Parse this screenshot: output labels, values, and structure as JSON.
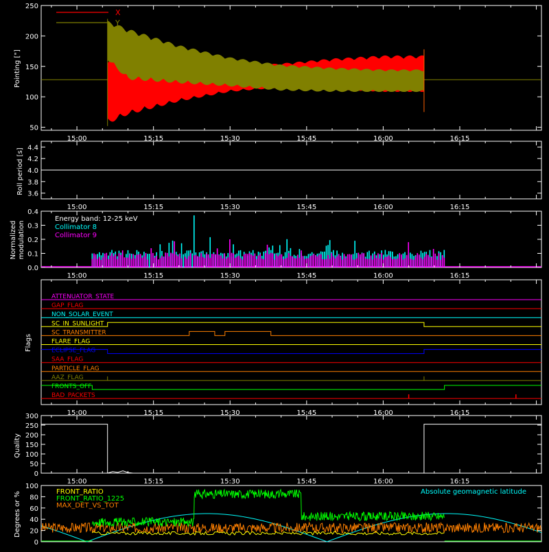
{
  "time_ticks": [
    "15:00",
    "15:15",
    "15:30",
    "15:45",
    "16:00",
    "16:15"
  ],
  "chart_data": [
    {
      "id": "pointing",
      "type": "area",
      "ylabel": "Pointing [\"]",
      "yticks": [
        50,
        100,
        150,
        200,
        250
      ],
      "ylim": [
        45,
        250
      ],
      "legend_placement": "top-left",
      "baseline": 128,
      "series": [
        {
          "name": "X",
          "color": "#ff0000",
          "envelope_upper": [
            [
              "15:06",
              165
            ],
            [
              "15:10",
              160
            ],
            [
              "15:20",
              152
            ],
            [
              "15:30",
              150
            ],
            [
              "15:40",
              155
            ],
            [
              "15:50",
              163
            ],
            [
              "16:00",
              168
            ],
            [
              "16:08",
              168
            ]
          ],
          "envelope_lower": [
            [
              "15:06",
              55
            ],
            [
              "15:10",
              70
            ],
            [
              "15:20",
              92
            ],
            [
              "15:30",
              108
            ],
            [
              "15:40",
              115
            ],
            [
              "15:50",
              112
            ],
            [
              "16:00",
              108
            ],
            [
              "16:08",
              108
            ]
          ]
        },
        {
          "name": "Y",
          "color": "#808000",
          "envelope_upper": [
            [
              "15:06",
              225
            ],
            [
              "15:10",
              212
            ],
            [
              "15:20",
              185
            ],
            [
              "15:30",
              165
            ],
            [
              "15:40",
              153
            ],
            [
              "15:50",
              148
            ],
            [
              "16:00",
              145
            ],
            [
              "16:08",
              145
            ]
          ],
          "envelope_lower": [
            [
              "15:06",
              160
            ],
            [
              "15:10",
              128
            ],
            [
              "15:20",
              122
            ],
            [
              "15:30",
              117
            ],
            [
              "15:40",
              110
            ],
            [
              "15:50",
              108
            ],
            [
              "16:00",
              108
            ],
            [
              "16:08",
              108
            ]
          ]
        }
      ]
    },
    {
      "id": "roll",
      "type": "line",
      "ylabel": "Roll period [s]",
      "yticks": [
        "3.6",
        "3.8",
        "4.0",
        "4.2",
        "4.4"
      ],
      "ylim": [
        3.5,
        4.5
      ],
      "series": [
        {
          "name": "",
          "color": "#ffffff",
          "points": [
            [
              "14:53",
              4.0
            ],
            [
              "16:31",
              4.0
            ]
          ]
        }
      ]
    },
    {
      "id": "modulation",
      "type": "bar",
      "ylabel_lines": [
        "Normalized",
        "modulation"
      ],
      "yticks": [
        "0.0",
        "0.1",
        "0.2",
        "0.3",
        "0.4"
      ],
      "ylim": [
        0,
        0.4
      ],
      "annotation": "Energy band: 12-25 keV",
      "series": [
        {
          "name": "Collimator 8",
          "color": "#00ffff",
          "start": "15:03",
          "end": "16:12",
          "typical": 0.1,
          "peak": [
            "15:23",
            0.37
          ]
        },
        {
          "name": "Collimator 9",
          "color": "#ff00ff",
          "start": "15:03",
          "end": "16:12",
          "typical": 0.08,
          "peak": [
            "15:30",
            0.2
          ]
        }
      ]
    },
    {
      "id": "flags",
      "type": "line",
      "ylabel": "Flags",
      "flags": [
        {
          "name": "ATTENUATOR_STATE",
          "color": "#ff00ff",
          "segments": [
            [
              "14:53",
              "16:31",
              0
            ]
          ]
        },
        {
          "name": "GAP_FLAG",
          "color": "#ff0000",
          "segments": [
            [
              "14:53",
              "16:31",
              0
            ]
          ]
        },
        {
          "name": "NON_SOLAR_EVENT",
          "color": "#00ffff",
          "segments": [
            [
              "14:53",
              "16:31",
              0
            ]
          ]
        },
        {
          "name": "SC_IN_SUNLIGHT",
          "color": "#ffff00",
          "segments": [
            [
              "14:53",
              "15:06",
              0
            ],
            [
              "15:06",
              "16:08",
              1
            ],
            [
              "16:08",
              "16:31",
              0
            ]
          ]
        },
        {
          "name": "SC_TRANSMITTER",
          "color": "#ff8000",
          "segments": [
            [
              "14:53",
              "15:22",
              0
            ],
            [
              "15:22",
              "15:27",
              1
            ],
            [
              "15:27",
              "15:29",
              0
            ],
            [
              "15:29",
              "15:38",
              1
            ],
            [
              "15:38",
              "16:31",
              0
            ]
          ]
        },
        {
          "name": "FLARE_FLAG",
          "color": "#ffff00",
          "segments": [
            [
              "14:53",
              "16:31",
              0
            ]
          ]
        },
        {
          "name": "ECLIPSE_FLAG",
          "color": "#0000ff",
          "segments": [
            [
              "14:53",
              "15:06",
              1
            ],
            [
              "15:06",
              "16:08",
              0
            ],
            [
              "16:08",
              "16:31",
              1
            ]
          ]
        },
        {
          "name": "SAA_FLAG",
          "color": "#ff0000",
          "segments": [
            [
              "14:53",
              "16:31",
              0
            ]
          ]
        },
        {
          "name": "PARTICLE_FLAG",
          "color": "#ff8000",
          "segments": [
            [
              "14:53",
              "16:31",
              0
            ]
          ]
        },
        {
          "name": "AAZ_FLAG",
          "color": "#808000",
          "segments": [
            [
              "14:53",
              "15:06",
              0
            ],
            [
              "15:06",
              "15:06",
              1
            ],
            [
              "15:06",
              "16:08",
              0
            ],
            [
              "16:08",
              "16:08",
              1
            ],
            [
              "16:08",
              "16:31",
              0
            ]
          ]
        },
        {
          "name": "FRONTS_OFF",
          "color": "#00ff00",
          "segments": [
            [
              "14:53",
              "15:03",
              1
            ],
            [
              "15:03",
              "16:12",
              0
            ],
            [
              "16:12",
              "16:31",
              1
            ]
          ]
        },
        {
          "name": "BAD_PACKETS",
          "color": "#ff0000",
          "segments": [
            [
              "14:53",
              "16:31",
              0
            ]
          ],
          "spikes": [
            "16:05",
            "16:26"
          ]
        }
      ]
    },
    {
      "id": "quality",
      "type": "line",
      "ylabel": "Quality",
      "yticks": [
        0,
        50,
        100,
        150,
        200,
        250,
        300
      ],
      "ylim": [
        0,
        300
      ],
      "series": [
        {
          "name": "",
          "color": "#ffffff",
          "points": [
            [
              "14:53",
              255
            ],
            [
              "15:06",
              255
            ],
            [
              "15:06",
              0
            ],
            [
              "15:07",
              8
            ],
            [
              "15:08",
              4
            ],
            [
              "15:09",
              12
            ],
            [
              "15:10",
              3
            ],
            [
              "15:11",
              0
            ],
            [
              "16:08",
              0
            ],
            [
              "16:08",
              255
            ],
            [
              "16:31",
              255
            ]
          ]
        }
      ]
    },
    {
      "id": "ratios",
      "type": "line",
      "ylabel": "Degrees or %",
      "yticks": [
        0,
        20,
        40,
        60,
        80,
        100
      ],
      "ylim": [
        0,
        100
      ],
      "series": [
        {
          "name": "FRONT_RATIO",
          "color": "#ffff00",
          "level": 15
        },
        {
          "name": "FRONT_RATIO_1225",
          "color": "#00ff00",
          "segments": [
            [
              "15:03",
              "15:23",
              35
            ],
            [
              "15:23",
              "15:44",
              85
            ],
            [
              "15:44",
              "16:12",
              45
            ]
          ]
        },
        {
          "name": "MAX_DET_VS_TOT",
          "color": "#ff8000",
          "level": 25
        },
        {
          "name": "Absolute geomagnetic latitude",
          "color": "#00ffff",
          "amplitude": 50
        }
      ]
    }
  ]
}
